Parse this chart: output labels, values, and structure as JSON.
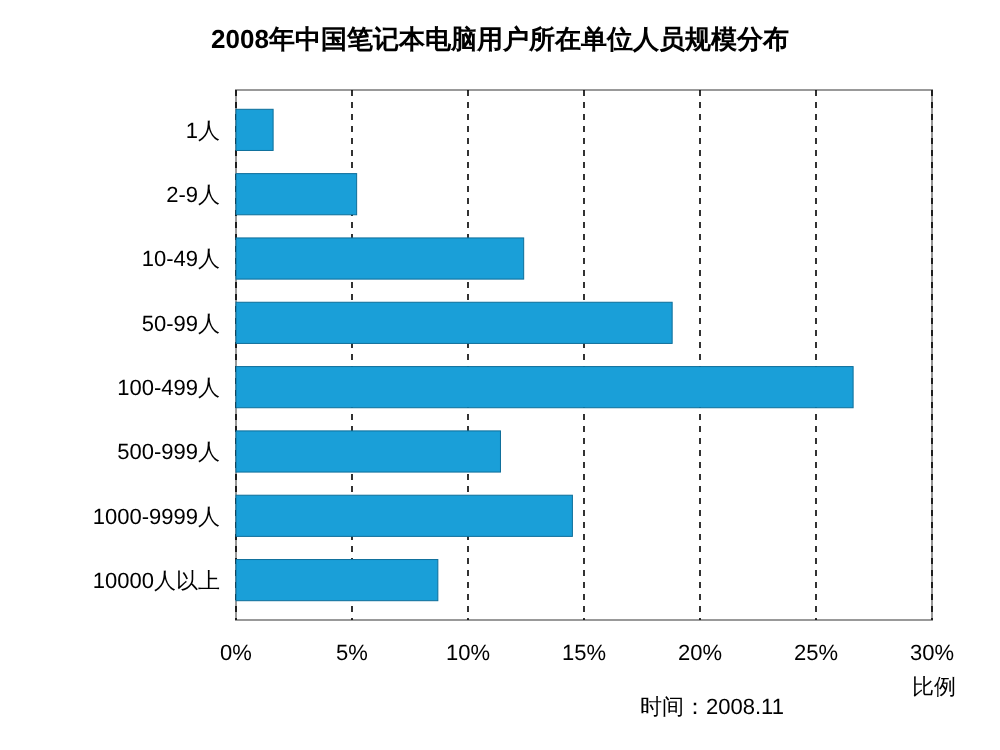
{
  "chart_data": {
    "type": "bar",
    "orientation": "horizontal",
    "title": "2008年中国笔记本电脑用户所在单位人员规模分布",
    "xlabel": "比例",
    "categories": [
      "1人",
      "2-9人",
      "10-49人",
      "50-99人",
      "100-499人",
      "500-999人",
      "1000-9999人",
      "10000人以上"
    ],
    "values": [
      1.6,
      5.2,
      12.4,
      18.8,
      26.6,
      11.4,
      14.5,
      8.7
    ],
    "color": "#1a9fd8",
    "xlim": [
      0,
      30
    ],
    "xticks": [
      {
        "value": 0,
        "label": "0%"
      },
      {
        "value": 5,
        "label": "5%"
      },
      {
        "value": 10,
        "label": "10%"
      },
      {
        "value": 15,
        "label": "15%"
      },
      {
        "value": 20,
        "label": "20%"
      },
      {
        "value": 25,
        "label": "25%"
      },
      {
        "value": 30,
        "label": "30%"
      }
    ],
    "grid": "x",
    "annotations": [
      "时间：2008.11"
    ]
  }
}
